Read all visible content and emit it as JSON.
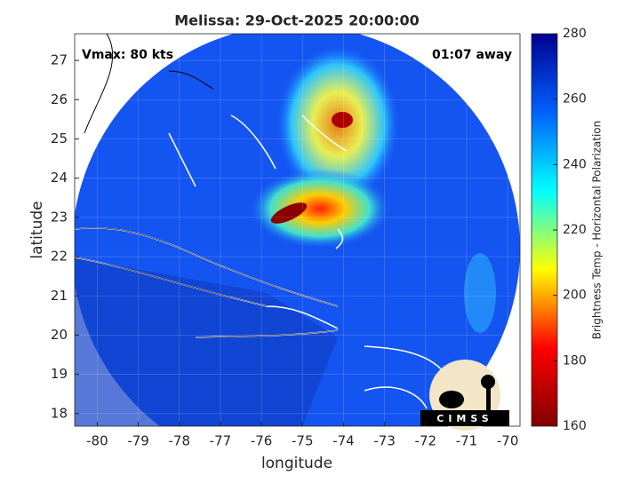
{
  "chart_data": {
    "type": "map",
    "title": "Melissa: 29-Oct-2025 20:00:00",
    "annotations": [
      "Vmax: 80 kts",
      "01:07 away"
    ],
    "x_label": "longitude",
    "y_label": "latitude",
    "xlim": [
      -80.55,
      -69.7
    ],
    "xticks": [
      -80,
      -79,
      -78,
      -77,
      -76,
      -75,
      -74,
      -73,
      -72,
      -71,
      -70
    ],
    "ylim": [
      17.68,
      27.68
    ],
    "yticks": [
      18,
      19,
      20,
      21,
      22,
      23,
      24,
      25,
      26,
      27
    ],
    "grid": true,
    "colorbar": {
      "label": "Brightness Temp - Horizontal Polarization",
      "lim": [
        160,
        280
      ],
      "ticks": [
        160,
        180,
        200,
        220,
        240,
        260,
        280
      ],
      "colors": [
        "#800000",
        "#ff0000",
        "#ffff00",
        "#00ffff",
        "#0060ff",
        "#00008f"
      ]
    },
    "logo": "CIMSS"
  }
}
